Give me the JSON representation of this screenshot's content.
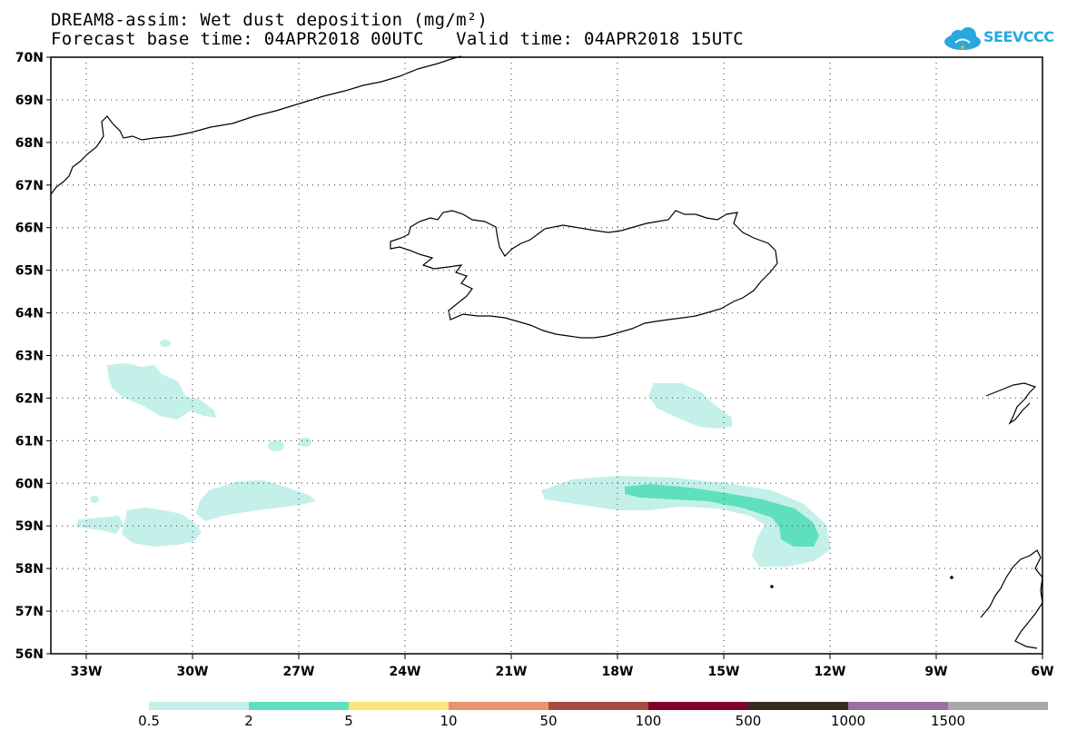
{
  "title": {
    "line1": "DREAM8-assim: Wet dust deposition (mg/m²)",
    "line2": "Forecast base time: 04APR2018 00UTC   Valid time: 04APR2018 15UTC"
  },
  "logo": {
    "text": "SEEVCCC",
    "icon": "cloud-icon"
  },
  "map": {
    "lon_labels": [
      "33W",
      "30W",
      "27W",
      "24W",
      "21W",
      "18W",
      "15W",
      "12W",
      "9W",
      "6W"
    ],
    "lat_labels": [
      "70N",
      "69N",
      "68N",
      "67N",
      "66N",
      "65N",
      "64N",
      "63N",
      "62N",
      "61N",
      "60N",
      "59N",
      "58N",
      "57N",
      "56N"
    ],
    "lon_range": [
      -34,
      -6
    ],
    "lat_range": [
      56,
      70
    ],
    "grid": "dotted"
  },
  "legend": {
    "colors": [
      "#c4f0ea",
      "#5ee0bd",
      "#f8e67c",
      "#e89470",
      "#a84a40",
      "#800030",
      "#3a2a1c",
      "#9a70a0",
      "#a8a8a8"
    ],
    "labels": [
      "0.5",
      "2",
      "5",
      "10",
      "50",
      "100",
      "500",
      "1000",
      "1500"
    ]
  }
}
